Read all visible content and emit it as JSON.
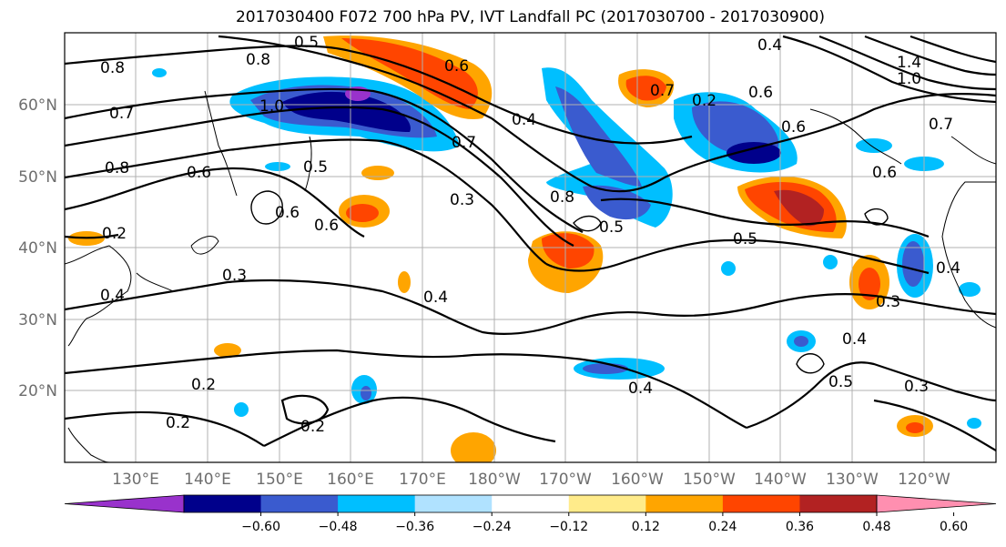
{
  "title": "2017030400 F072 700 hPa PV, IVT Landfall PC (2017030700 - 2017030900)",
  "lat_labels": [
    "60°N",
    "50°N",
    "40°N",
    "30°N",
    "20°N"
  ],
  "lon_labels": [
    "130°E",
    "140°E",
    "150°E",
    "160°E",
    "170°E",
    "180°W",
    "170°W",
    "160°W",
    "150°W",
    "140°W",
    "130°W",
    "120°W"
  ],
  "colorbar": {
    "colors": [
      "#9932cc",
      "#00008b",
      "#3a5bcf",
      "#00bfff",
      "#b0e2ff",
      "#ffffff",
      "#ffeb8a",
      "#ffa500",
      "#ff4500",
      "#b22222",
      "#ff8fb0"
    ],
    "ticks": [
      "−0.60",
      "−0.48",
      "−0.36",
      "−0.24",
      "−0.12",
      "0.12",
      "0.24",
      "0.36",
      "0.48",
      "0.60"
    ]
  },
  "contour_labels": [
    "0.5",
    "0.8",
    "0.7",
    "1.0",
    "0.8",
    "0.6",
    "0.5",
    "0.6",
    "0.6",
    "0.2",
    "0.3",
    "0.4",
    "0.2",
    "0.2",
    "0.2",
    "0.4",
    "0.3",
    "0.7",
    "0.6",
    "0.4",
    "0.8",
    "0.5",
    "0.5",
    "0.7",
    "0.6",
    "0.3",
    "0.4",
    "0.5",
    "0.3",
    "0.4",
    "1.0",
    "1.4",
    "0.7",
    "0.6",
    "0.4",
    "0.2",
    "0.4",
    "0.6",
    "0.8"
  ],
  "chart_data": {
    "type": "heatmap",
    "title": "2017030400 F072 700 hPa PV, IVT Landfall PC (2017030700 - 2017030900)",
    "lat_ticks": [
      "60°N",
      "50°N",
      "40°N",
      "30°N",
      "20°N"
    ],
    "lon_ticks": [
      "130°E",
      "140°E",
      "150°E",
      "160°E",
      "170°E",
      "180°W",
      "170°W",
      "160°W",
      "150°W",
      "140°W",
      "130°W",
      "120°W"
    ],
    "colorbar_levels": [
      -0.6,
      -0.48,
      -0.36,
      -0.24,
      -0.12,
      0.12,
      0.24,
      0.36,
      0.48,
      0.6
    ],
    "colorbar_extend": "both",
    "grid": true
  }
}
